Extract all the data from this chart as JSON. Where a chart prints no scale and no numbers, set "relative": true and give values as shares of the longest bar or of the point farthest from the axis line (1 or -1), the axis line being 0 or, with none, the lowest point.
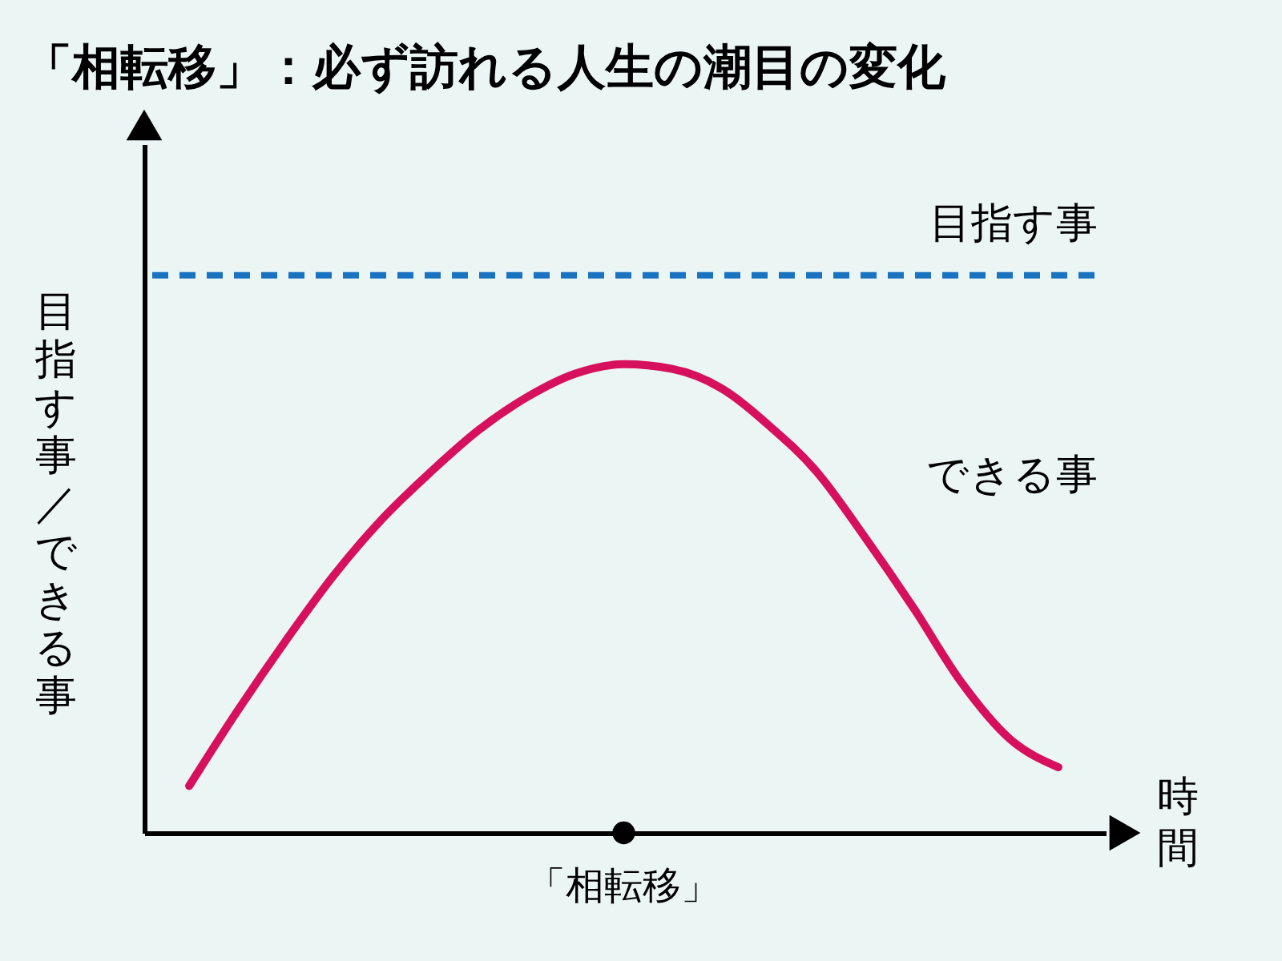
{
  "chart_data": {
    "type": "line",
    "title": "「相転移」：必ず訪れる人生の潮目の変化",
    "xlabel": "時間",
    "ylabel": "目指す事／できる事",
    "relative": true,
    "categories": [
      null,
      null,
      null,
      null,
      null,
      null,
      null,
      null,
      null,
      null,
      null,
      null,
      null,
      null,
      null,
      null,
      null,
      null,
      null
    ],
    "series": [
      {
        "name": "できる事",
        "color": "#d6105c",
        "values": [
          0.1,
          0.26,
          0.41,
          0.55,
          0.67,
          0.77,
          0.86,
          0.93,
          0.98,
          1.0,
          0.99,
          0.95,
          0.87,
          0.77,
          0.63,
          0.48,
          0.32,
          0.2,
          0.14
        ]
      }
    ],
    "ref_lines": [
      {
        "axis": "y",
        "value": 1.19,
        "label": "目指す事",
        "color": "#1a73c0",
        "line_style": "dashed"
      }
    ],
    "annotations": [
      "「相転移」"
    ],
    "grid": false,
    "legend": false,
    "marker": "none",
    "line_style": "solid"
  }
}
